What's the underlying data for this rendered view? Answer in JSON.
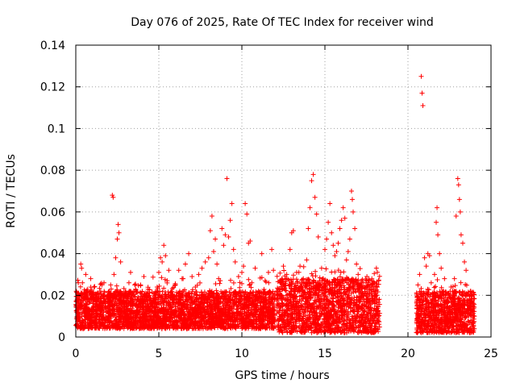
{
  "chart_data": {
    "type": "scatter",
    "title": "Day 076 of 2025, Rate Of TEC Index for receiver wind",
    "xlabel": "GPS time / hours",
    "ylabel": "ROTI / TECUs",
    "xlim": [
      0,
      25
    ],
    "ylim": [
      0,
      0.14
    ],
    "x_ticks": [
      "0",
      "5",
      "10",
      "15",
      "20",
      "25"
    ],
    "y_ticks": [
      "0",
      "0.02",
      "0.04",
      "0.06",
      "0.08",
      "0.1",
      "0.12",
      "0.14"
    ],
    "grid": true,
    "marker": "+",
    "series_color": "#ff0000",
    "series": [
      {
        "name": "ROTI",
        "points": [
          [
            0.1,
            0.012
          ],
          [
            0.2,
            0.018
          ],
          [
            0.3,
            0.035
          ],
          [
            0.35,
            0.033
          ],
          [
            0.4,
            0.026
          ],
          [
            0.5,
            0.015
          ],
          [
            0.6,
            0.03
          ],
          [
            0.7,
            0.022
          ],
          [
            0.8,
            0.011
          ],
          [
            0.9,
            0.028
          ],
          [
            1.0,
            0.019
          ],
          [
            1.1,
            0.024
          ],
          [
            1.2,
            0.013
          ],
          [
            1.3,
            0.021
          ],
          [
            1.5,
            0.017
          ],
          [
            1.7,
            0.026
          ],
          [
            1.9,
            0.014
          ],
          [
            2.0,
            0.02
          ],
          [
            2.1,
            0.025
          ],
          [
            2.2,
            0.068
          ],
          [
            2.25,
            0.067
          ],
          [
            2.3,
            0.03
          ],
          [
            2.4,
            0.038
          ],
          [
            2.5,
            0.047
          ],
          [
            2.55,
            0.054
          ],
          [
            2.6,
            0.05
          ],
          [
            2.7,
            0.036
          ],
          [
            2.8,
            0.016
          ],
          [
            3.0,
            0.02
          ],
          [
            3.2,
            0.026
          ],
          [
            3.3,
            0.031
          ],
          [
            3.5,
            0.022
          ],
          [
            3.7,
            0.014
          ],
          [
            3.9,
            0.025
          ],
          [
            4.1,
            0.029
          ],
          [
            4.3,
            0.018
          ],
          [
            4.5,
            0.013
          ],
          [
            4.7,
            0.021
          ],
          [
            4.9,
            0.024
          ],
          [
            5.0,
            0.031
          ],
          [
            5.1,
            0.038
          ],
          [
            5.2,
            0.036
          ],
          [
            5.3,
            0.044
          ],
          [
            5.4,
            0.039
          ],
          [
            5.5,
            0.027
          ],
          [
            5.6,
            0.032
          ],
          [
            5.7,
            0.02
          ],
          [
            5.9,
            0.019
          ],
          [
            6.0,
            0.025
          ],
          [
            6.2,
            0.032
          ],
          [
            6.4,
            0.028
          ],
          [
            6.6,
            0.035
          ],
          [
            6.8,
            0.04
          ],
          [
            7.0,
            0.029
          ],
          [
            7.2,
            0.024
          ],
          [
            7.4,
            0.03
          ],
          [
            7.6,
            0.033
          ],
          [
            7.8,
            0.036
          ],
          [
            8.0,
            0.038
          ],
          [
            8.1,
            0.051
          ],
          [
            8.2,
            0.058
          ],
          [
            8.3,
            0.041
          ],
          [
            8.4,
            0.047
          ],
          [
            8.5,
            0.035
          ],
          [
            8.6,
            0.028
          ],
          [
            8.7,
            0.027
          ],
          [
            8.8,
            0.052
          ],
          [
            8.9,
            0.044
          ],
          [
            9.0,
            0.049
          ],
          [
            9.1,
            0.076
          ],
          [
            9.2,
            0.048
          ],
          [
            9.3,
            0.056
          ],
          [
            9.4,
            0.064
          ],
          [
            9.5,
            0.042
          ],
          [
            9.6,
            0.036
          ],
          [
            9.8,
            0.029
          ],
          [
            10.0,
            0.031
          ],
          [
            10.1,
            0.034
          ],
          [
            10.2,
            0.064
          ],
          [
            10.3,
            0.059
          ],
          [
            10.4,
            0.045
          ],
          [
            10.5,
            0.046
          ],
          [
            10.6,
            0.026
          ],
          [
            10.8,
            0.033
          ],
          [
            11.0,
            0.022
          ],
          [
            11.2,
            0.04
          ],
          [
            11.4,
            0.027
          ],
          [
            11.6,
            0.031
          ],
          [
            11.8,
            0.042
          ],
          [
            11.9,
            0.032
          ],
          [
            12.1,
            0.022
          ],
          [
            12.3,
            0.026
          ],
          [
            12.5,
            0.034
          ],
          [
            12.7,
            0.03
          ],
          [
            12.9,
            0.042
          ],
          [
            13.0,
            0.05
          ],
          [
            13.1,
            0.051
          ],
          [
            13.3,
            0.031
          ],
          [
            13.5,
            0.034
          ],
          [
            13.7,
            0.028
          ],
          [
            13.9,
            0.037
          ],
          [
            14.0,
            0.052
          ],
          [
            14.1,
            0.062
          ],
          [
            14.2,
            0.075
          ],
          [
            14.3,
            0.078
          ],
          [
            14.4,
            0.067
          ],
          [
            14.5,
            0.059
          ],
          [
            14.6,
            0.048
          ],
          [
            14.8,
            0.033
          ],
          [
            15.0,
            0.042
          ],
          [
            15.1,
            0.047
          ],
          [
            15.2,
            0.055
          ],
          [
            15.3,
            0.064
          ],
          [
            15.4,
            0.05
          ],
          [
            15.5,
            0.044
          ],
          [
            15.6,
            0.039
          ],
          [
            15.7,
            0.041
          ],
          [
            15.8,
            0.045
          ],
          [
            15.9,
            0.052
          ],
          [
            16.0,
            0.056
          ],
          [
            16.1,
            0.062
          ],
          [
            16.2,
            0.057
          ],
          [
            16.3,
            0.037
          ],
          [
            16.4,
            0.041
          ],
          [
            16.5,
            0.047
          ],
          [
            16.6,
            0.07
          ],
          [
            16.65,
            0.066
          ],
          [
            16.7,
            0.06
          ],
          [
            16.8,
            0.052
          ],
          [
            16.9,
            0.035
          ],
          [
            17.0,
            0.03
          ],
          [
            17.2,
            0.026
          ],
          [
            17.4,
            0.021
          ],
          [
            17.6,
            0.018
          ],
          [
            17.8,
            0.025
          ],
          [
            18.0,
            0.02
          ],
          [
            18.1,
            0.033
          ],
          [
            18.2,
            0.009
          ],
          [
            20.6,
            0.025
          ],
          [
            20.7,
            0.03
          ],
          [
            20.8,
            0.125
          ],
          [
            20.85,
            0.117
          ],
          [
            20.9,
            0.111
          ],
          [
            21.0,
            0.038
          ],
          [
            21.1,
            0.034
          ],
          [
            21.2,
            0.04
          ],
          [
            21.3,
            0.039
          ],
          [
            21.4,
            0.026
          ],
          [
            21.5,
            0.021
          ],
          [
            21.6,
            0.03
          ],
          [
            21.7,
            0.055
          ],
          [
            21.75,
            0.062
          ],
          [
            21.8,
            0.049
          ],
          [
            21.9,
            0.04
          ],
          [
            22.0,
            0.033
          ],
          [
            22.1,
            0.022
          ],
          [
            22.2,
            0.028
          ],
          [
            22.4,
            0.021
          ],
          [
            22.6,
            0.024
          ],
          [
            22.8,
            0.028
          ],
          [
            22.9,
            0.058
          ],
          [
            23.0,
            0.076
          ],
          [
            23.05,
            0.073
          ],
          [
            23.1,
            0.066
          ],
          [
            23.15,
            0.06
          ],
          [
            23.2,
            0.049
          ],
          [
            23.3,
            0.045
          ],
          [
            23.4,
            0.036
          ],
          [
            23.5,
            0.032
          ],
          [
            23.7,
            0.014
          ],
          [
            23.8,
            0.013
          ],
          [
            23.9,
            0.015
          ],
          [
            24.0,
            0.01
          ]
        ],
        "band_segments": [
          {
            "x": [
              0.0,
              12.0
            ],
            "base_min": 0.004,
            "base_max": 0.022
          },
          {
            "x": [
              12.1,
              18.3
            ],
            "base_min": 0.002,
            "base_max": 0.028
          },
          {
            "x": [
              20.5,
              24.0
            ],
            "base_min": 0.002,
            "base_max": 0.022
          }
        ]
      }
    ]
  }
}
